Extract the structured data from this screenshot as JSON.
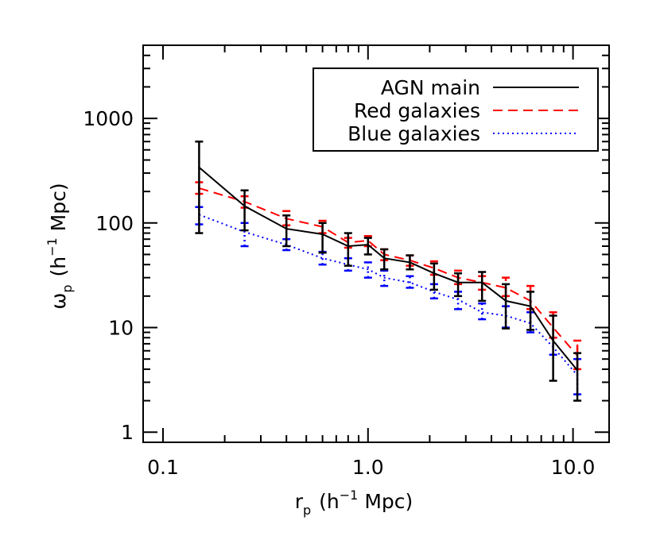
{
  "chart_data": {
    "type": "line",
    "title": "",
    "xlabel_main": "r",
    "xlabel_sub": "p",
    "xlabel_units": "(h",
    "xlabel_sup": "−1",
    "xlabel_tail": "Mpc)",
    "ylabel_main": "ω",
    "ylabel_sub": "p",
    "ylabel_units": "(h",
    "ylabel_sup": "−1",
    "ylabel_tail": "Mpc)",
    "xscale": "log",
    "yscale": "log",
    "xlim": [
      0.08,
      15
    ],
    "ylim": [
      0.8,
      5000
    ],
    "xticks": [
      {
        "value": 0.1,
        "label": "0.1"
      },
      {
        "value": 1.0,
        "label": "1.0"
      },
      {
        "value": 10.0,
        "label": "10.0"
      }
    ],
    "yticks": [
      {
        "value": 1,
        "label": "1"
      },
      {
        "value": 10,
        "label": "10"
      },
      {
        "value": 100,
        "label": "100"
      },
      {
        "value": 1000,
        "label": "1000"
      }
    ],
    "grid": false,
    "legend_position": "top-right",
    "series": [
      {
        "name": "AGN main",
        "color": "#000000",
        "style": "solid",
        "x": [
          0.15,
          0.25,
          0.4,
          0.6,
          0.8,
          1.0,
          1.2,
          1.6,
          2.1,
          2.75,
          3.6,
          4.7,
          6.2,
          8.0,
          10.5
        ],
        "y": [
          340,
          145,
          88,
          78,
          60,
          62,
          46,
          42,
          33,
          27,
          27,
          18,
          16,
          7.5,
          3.9
        ],
        "err_lo": [
          80,
          85,
          60,
          52,
          39,
          50,
          36,
          36,
          23,
          20,
          18,
          9.8,
          9.5,
          3.1,
          2.0
        ],
        "err_hi": [
          600,
          205,
          118,
          100,
          80,
          72,
          56,
          49,
          41,
          33,
          34,
          26,
          22,
          13,
          5.7
        ]
      },
      {
        "name": "Red galaxies",
        "color": "#ff0000",
        "style": "dashed",
        "x": [
          0.15,
          0.25,
          0.4,
          0.6,
          0.8,
          1.0,
          1.2,
          1.6,
          2.1,
          2.75,
          3.6,
          4.7,
          6.2,
          8.0,
          10.5
        ],
        "y": [
          215,
          160,
          110,
          92,
          65,
          68,
          50,
          44,
          37,
          30,
          27,
          24,
          18,
          10,
          5.4
        ],
        "err_lo": [
          190,
          140,
          95,
          80,
          58,
          60,
          44,
          39,
          32,
          26,
          23,
          20,
          15,
          8,
          4.0
        ],
        "err_hi": [
          245,
          180,
          130,
          105,
          72,
          75,
          56,
          49,
          43,
          35,
          31,
          30,
          25,
          14,
          7.5
        ]
      },
      {
        "name": "Blue galaxies",
        "color": "#0000ff",
        "style": "dotted",
        "x": [
          0.15,
          0.25,
          0.4,
          0.6,
          0.8,
          1.0,
          1.2,
          1.6,
          2.1,
          2.75,
          3.6,
          4.7,
          6.2,
          8.0,
          10.5
        ],
        "y": [
          120,
          82,
          62,
          46,
          40,
          36,
          30,
          27,
          22,
          18.5,
          14,
          13,
          11,
          6.5,
          3.5
        ],
        "err_lo": [
          97,
          60,
          55,
          40,
          35,
          30,
          25,
          24,
          19,
          15,
          12,
          10,
          9,
          5.5,
          2.3
        ],
        "err_hi": [
          142,
          100,
          70,
          53,
          46,
          42,
          35,
          31,
          26,
          22,
          17,
          16,
          14,
          8,
          5.0
        ]
      }
    ]
  }
}
